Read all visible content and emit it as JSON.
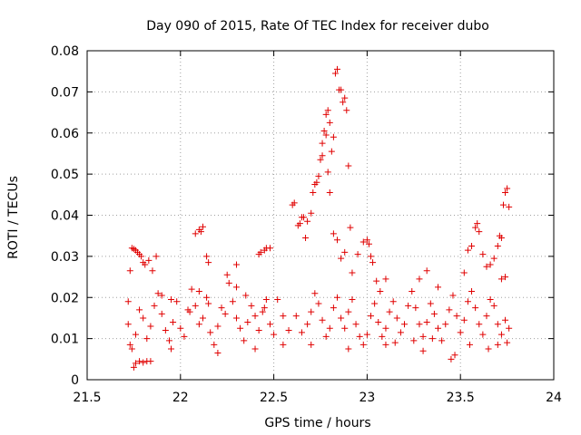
{
  "chart_data": {
    "type": "scatter",
    "title": "Day 090 of 2015, Rate Of TEC Index for receiver dubo",
    "xlabel": "GPS time / hours",
    "ylabel": "ROTI / TECUs",
    "xlim": [
      21.5,
      24
    ],
    "ylim": [
      0,
      0.08
    ],
    "xticks": [
      21.5,
      22,
      22.5,
      23,
      23.5,
      24
    ],
    "xtick_labels": [
      "21.5",
      "22",
      "22.5",
      "23",
      "23.5",
      "24"
    ],
    "yticks": [
      0,
      0.01,
      0.02,
      0.03,
      0.04,
      0.05,
      0.06,
      0.07,
      0.08
    ],
    "ytick_labels": [
      "0",
      "0.01",
      "0.02",
      "0.03",
      "0.04",
      "0.05",
      "0.06",
      "0.07",
      "0.08"
    ],
    "grid": true,
    "marker": "+",
    "colors": {
      "points": "#e00000",
      "grid": "#a0a0a0",
      "axes": "#000000"
    },
    "series": [
      {
        "name": "ROTI",
        "points": [
          [
            21.73,
            0.0265
          ],
          [
            21.74,
            0.032
          ],
          [
            21.75,
            0.0318
          ],
          [
            21.76,
            0.0315
          ],
          [
            21.77,
            0.031
          ],
          [
            21.78,
            0.0305
          ],
          [
            21.79,
            0.03
          ],
          [
            21.8,
            0.0285
          ],
          [
            21.81,
            0.028
          ],
          [
            21.83,
            0.029
          ],
          [
            21.85,
            0.0265
          ],
          [
            21.87,
            0.03
          ],
          [
            21.75,
            0.003
          ],
          [
            21.76,
            0.004
          ],
          [
            21.78,
            0.0045
          ],
          [
            21.8,
            0.0042
          ],
          [
            21.82,
            0.0045
          ],
          [
            21.84,
            0.0045
          ],
          [
            21.72,
            0.019
          ],
          [
            21.72,
            0.0135
          ],
          [
            21.73,
            0.0085
          ],
          [
            21.74,
            0.0075
          ],
          [
            21.76,
            0.011
          ],
          [
            21.78,
            0.017
          ],
          [
            21.8,
            0.015
          ],
          [
            21.82,
            0.01
          ],
          [
            21.84,
            0.013
          ],
          [
            21.86,
            0.018
          ],
          [
            21.88,
            0.021
          ],
          [
            21.9,
            0.016
          ],
          [
            21.92,
            0.012
          ],
          [
            21.94,
            0.0095
          ],
          [
            21.96,
            0.014
          ],
          [
            21.98,
            0.019
          ],
          [
            22.0,
            0.0125
          ],
          [
            22.02,
            0.0105
          ],
          [
            22.04,
            0.017
          ],
          [
            22.06,
            0.022
          ],
          [
            22.08,
            0.018
          ],
          [
            22.1,
            0.0135
          ],
          [
            22.12,
            0.015
          ],
          [
            22.14,
            0.02
          ],
          [
            22.16,
            0.0115
          ],
          [
            22.18,
            0.0085
          ],
          [
            22.2,
            0.013
          ],
          [
            22.22,
            0.0175
          ],
          [
            22.24,
            0.016
          ],
          [
            22.26,
            0.0235
          ],
          [
            22.28,
            0.019
          ],
          [
            22.3,
            0.015
          ],
          [
            22.32,
            0.0125
          ],
          [
            22.34,
            0.0095
          ],
          [
            22.36,
            0.014
          ],
          [
            22.38,
            0.018
          ],
          [
            22.4,
            0.0155
          ],
          [
            22.42,
            0.012
          ],
          [
            22.44,
            0.0165
          ],
          [
            22.46,
            0.0195
          ],
          [
            22.48,
            0.0135
          ],
          [
            22.5,
            0.011
          ],
          [
            21.9,
            0.0205
          ],
          [
            21.95,
            0.0195
          ],
          [
            22.05,
            0.0165
          ],
          [
            22.1,
            0.0215
          ],
          [
            22.15,
            0.0185
          ],
          [
            22.25,
            0.0255
          ],
          [
            22.3,
            0.0225
          ],
          [
            22.35,
            0.0205
          ],
          [
            22.45,
            0.0175
          ],
          [
            22.52,
            0.0195
          ],
          [
            22.55,
            0.0155
          ],
          [
            22.58,
            0.012
          ],
          [
            22.08,
            0.0355
          ],
          [
            22.1,
            0.0365
          ],
          [
            22.11,
            0.036
          ],
          [
            22.12,
            0.0372
          ],
          [
            22.14,
            0.03
          ],
          [
            22.15,
            0.0285
          ],
          [
            22.42,
            0.0305
          ],
          [
            22.43,
            0.031
          ],
          [
            22.45,
            0.0315
          ],
          [
            22.46,
            0.032
          ],
          [
            22.48,
            0.032
          ],
          [
            22.3,
            0.028
          ],
          [
            22.6,
            0.0425
          ],
          [
            22.61,
            0.043
          ],
          [
            22.63,
            0.0375
          ],
          [
            22.64,
            0.038
          ],
          [
            22.65,
            0.0395
          ],
          [
            22.66,
            0.0395
          ],
          [
            22.67,
            0.0345
          ],
          [
            22.68,
            0.0385
          ],
          [
            22.7,
            0.0405
          ],
          [
            22.71,
            0.0455
          ],
          [
            22.72,
            0.0475
          ],
          [
            22.73,
            0.048
          ],
          [
            22.74,
            0.0495
          ],
          [
            22.75,
            0.0535
          ],
          [
            22.76,
            0.0575
          ],
          [
            22.77,
            0.0605
          ],
          [
            22.78,
            0.0645
          ],
          [
            22.79,
            0.0655
          ],
          [
            22.8,
            0.0625
          ],
          [
            22.81,
            0.0555
          ],
          [
            22.82,
            0.059
          ],
          [
            22.83,
            0.0745
          ],
          [
            22.84,
            0.0755
          ],
          [
            22.85,
            0.0705
          ],
          [
            22.86,
            0.0705
          ],
          [
            22.87,
            0.0675
          ],
          [
            22.88,
            0.0685
          ],
          [
            22.89,
            0.0655
          ],
          [
            22.9,
            0.052
          ],
          [
            22.91,
            0.037
          ],
          [
            22.76,
            0.0545
          ],
          [
            22.78,
            0.0595
          ],
          [
            22.79,
            0.0505
          ],
          [
            22.8,
            0.0455
          ],
          [
            22.82,
            0.0355
          ],
          [
            22.84,
            0.034
          ],
          [
            22.86,
            0.0295
          ],
          [
            22.88,
            0.031
          ],
          [
            22.92,
            0.026
          ],
          [
            22.95,
            0.0305
          ],
          [
            22.98,
            0.0335
          ],
          [
            23.0,
            0.034
          ],
          [
            23.01,
            0.033
          ],
          [
            23.02,
            0.03
          ],
          [
            23.03,
            0.0285
          ],
          [
            23.05,
            0.024
          ],
          [
            23.07,
            0.0215
          ],
          [
            23.1,
            0.0245
          ],
          [
            22.62,
            0.0155
          ],
          [
            22.65,
            0.0115
          ],
          [
            22.68,
            0.0135
          ],
          [
            22.7,
            0.0165
          ],
          [
            22.72,
            0.021
          ],
          [
            22.74,
            0.0185
          ],
          [
            22.76,
            0.0145
          ],
          [
            22.78,
            0.0105
          ],
          [
            22.8,
            0.0125
          ],
          [
            22.82,
            0.0175
          ],
          [
            22.84,
            0.02
          ],
          [
            22.86,
            0.015
          ],
          [
            22.88,
            0.0125
          ],
          [
            22.9,
            0.0165
          ],
          [
            22.92,
            0.0195
          ],
          [
            22.94,
            0.0135
          ],
          [
            22.96,
            0.0105
          ],
          [
            22.98,
            0.0085
          ],
          [
            23.0,
            0.011
          ],
          [
            23.02,
            0.0155
          ],
          [
            23.04,
            0.0185
          ],
          [
            23.06,
            0.014
          ],
          [
            23.08,
            0.0105
          ],
          [
            23.1,
            0.0125
          ],
          [
            23.12,
            0.0165
          ],
          [
            23.14,
            0.019
          ],
          [
            23.16,
            0.015
          ],
          [
            23.18,
            0.0115
          ],
          [
            23.2,
            0.0135
          ],
          [
            23.22,
            0.018
          ],
          [
            23.24,
            0.0215
          ],
          [
            23.26,
            0.0175
          ],
          [
            23.28,
            0.0135
          ],
          [
            23.3,
            0.0105
          ],
          [
            23.32,
            0.014
          ],
          [
            23.34,
            0.0185
          ],
          [
            23.36,
            0.016
          ],
          [
            23.38,
            0.0125
          ],
          [
            23.4,
            0.0095
          ],
          [
            23.42,
            0.0135
          ],
          [
            23.44,
            0.017
          ],
          [
            23.46,
            0.0205
          ],
          [
            23.48,
            0.0155
          ],
          [
            23.5,
            0.0115
          ],
          [
            23.52,
            0.0145
          ],
          [
            23.54,
            0.019
          ],
          [
            23.56,
            0.0215
          ],
          [
            23.58,
            0.0175
          ],
          [
            23.6,
            0.0135
          ],
          [
            23.62,
            0.011
          ],
          [
            23.64,
            0.0155
          ],
          [
            23.66,
            0.0195
          ],
          [
            23.68,
            0.018
          ],
          [
            23.7,
            0.0135
          ],
          [
            23.72,
            0.011
          ],
          [
            23.74,
            0.0145
          ],
          [
            23.76,
            0.0125
          ],
          [
            23.45,
            0.005
          ],
          [
            23.47,
            0.006
          ],
          [
            23.3,
            0.007
          ],
          [
            23.1,
            0.0085
          ],
          [
            23.15,
            0.009
          ],
          [
            23.25,
            0.0095
          ],
          [
            23.35,
            0.01
          ],
          [
            23.55,
            0.0085
          ],
          [
            23.65,
            0.0075
          ],
          [
            23.7,
            0.0085
          ],
          [
            23.75,
            0.009
          ],
          [
            23.28,
            0.0245
          ],
          [
            23.32,
            0.0265
          ],
          [
            23.38,
            0.0225
          ],
          [
            23.52,
            0.026
          ],
          [
            23.54,
            0.0315
          ],
          [
            23.56,
            0.0325
          ],
          [
            23.58,
            0.037
          ],
          [
            23.59,
            0.038
          ],
          [
            23.6,
            0.036
          ],
          [
            23.62,
            0.0305
          ],
          [
            23.64,
            0.0275
          ],
          [
            23.66,
            0.028
          ],
          [
            23.68,
            0.0295
          ],
          [
            23.7,
            0.0325
          ],
          [
            23.71,
            0.035
          ],
          [
            23.72,
            0.0345
          ],
          [
            23.73,
            0.0425
          ],
          [
            23.74,
            0.0455
          ],
          [
            23.75,
            0.0465
          ],
          [
            23.76,
            0.042
          ],
          [
            23.74,
            0.025
          ],
          [
            23.72,
            0.0245
          ],
          [
            21.95,
            0.0075
          ],
          [
            22.2,
            0.0065
          ],
          [
            22.4,
            0.0075
          ],
          [
            22.55,
            0.0085
          ],
          [
            22.7,
            0.0085
          ],
          [
            22.9,
            0.0075
          ]
        ]
      }
    ]
  }
}
